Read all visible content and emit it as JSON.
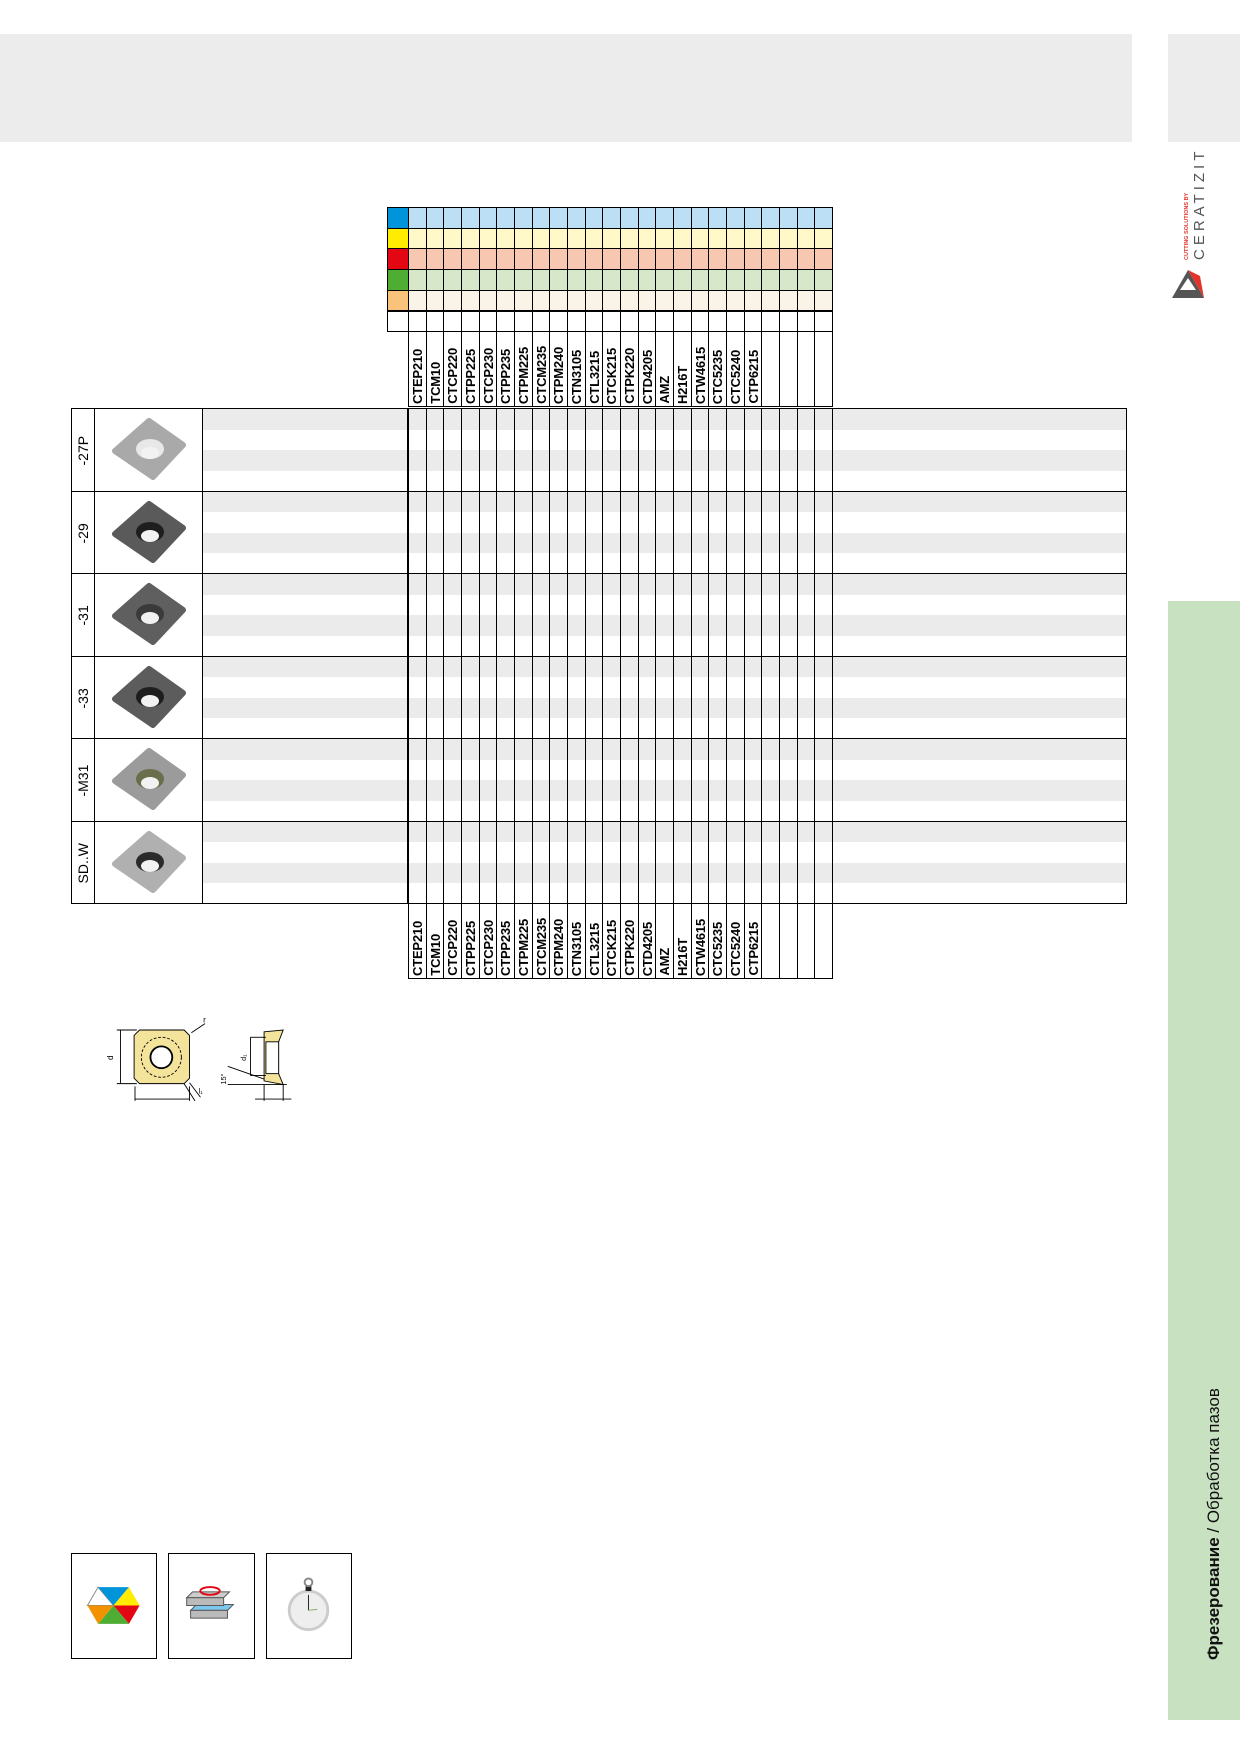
{
  "brand": {
    "name": "CERATIZIT",
    "tagline": "CUTTING SOLUTIONS BY"
  },
  "side_tab": {
    "bold": "Фрезерование",
    "rest": " / Обработка пазов",
    "color": "#c8e2c1"
  },
  "material_groups": [
    {
      "swatch": "#0095db",
      "fill": "#bcdff5"
    },
    {
      "swatch": "#ffec00",
      "fill": "#fff9c9"
    },
    {
      "swatch": "#e30613",
      "fill": "#f8c7b1"
    },
    {
      "swatch": "#4fad33",
      "fill": "#d6e8c9"
    },
    {
      "swatch": "#f9c37b",
      "fill": "#faf3e8"
    },
    {
      "swatch": "#ffffff",
      "fill": "#ffffff"
    }
  ],
  "grades": [
    "CTEP210",
    "TCM10",
    "CTCP220",
    "CTPP225",
    "CTCP230",
    "CTPP235",
    "CTPM225",
    "CTCM235",
    "CTPM240",
    "CTN3105",
    "CTL3215",
    "CTCK215",
    "CTPK220",
    "CTD4205",
    "AMZ",
    "H216T",
    "CTW4615",
    "CTC5235",
    "CTC5240",
    "CTP6215",
    "",
    "",
    "",
    ""
  ],
  "inserts": [
    {
      "code": "-27P",
      "tone": "#a9a9a9",
      "hole": "#e8e8e8"
    },
    {
      "code": "-29",
      "tone": "#5a5a5a",
      "hole": "#1e1e1e"
    },
    {
      "code": "-31",
      "tone": "#5f5f5f",
      "hole": "#3a3a3a"
    },
    {
      "code": "-33",
      "tone": "#5c5c5c",
      "hole": "#1e1e1e"
    },
    {
      "code": "-M31",
      "tone": "#9b9b9b",
      "hole": "#6a6e4a"
    },
    {
      "code": "SD..W",
      "tone": "#b0b0b0",
      "hole": "#2a2a2a"
    }
  ],
  "drawing": {
    "d": "d",
    "r": "r",
    "l1": "l₁",
    "d1": "d₁",
    "angle": "15°"
  },
  "icons": [
    "material-hexagon-icon",
    "insert-stack-icon",
    "stopwatch-icon"
  ]
}
